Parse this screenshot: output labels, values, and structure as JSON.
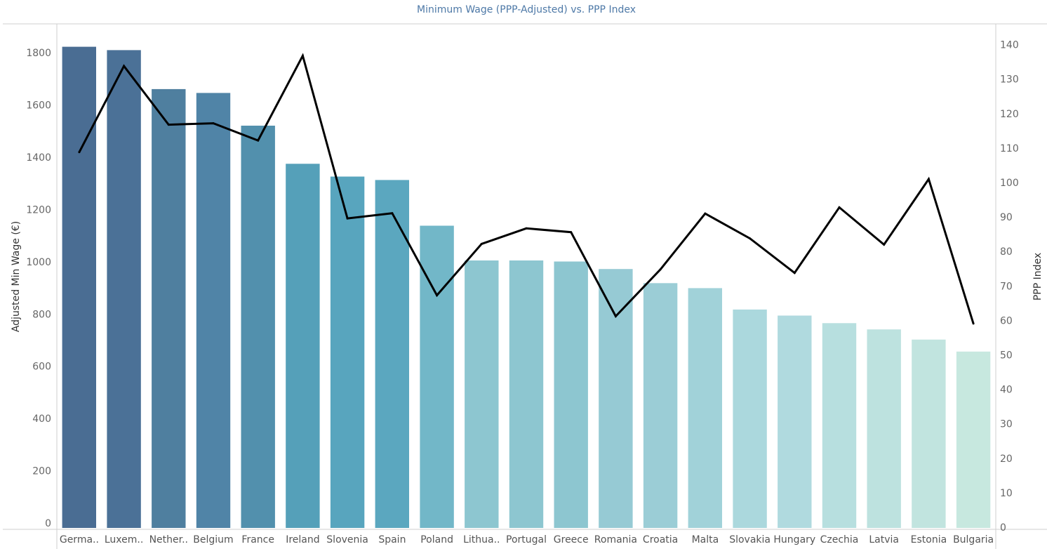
{
  "chart_data": {
    "type": "bar",
    "title": "Minimum Wage (PPP-Adjusted) vs. PPP Index",
    "ylabel": "Adjusted Min Wage (€)",
    "y2label": "PPP Index",
    "ylim": [
      0,
      1900
    ],
    "y2lim": [
      0,
      144
    ],
    "yticks": [
      0,
      200,
      400,
      600,
      800,
      1000,
      1200,
      1400,
      1600,
      1800
    ],
    "y2ticks": [
      0,
      10,
      20,
      30,
      40,
      50,
      60,
      70,
      80,
      90,
      100,
      110,
      120,
      130,
      140
    ],
    "categories": [
      "Germa..",
      "Luxem..",
      "Nether..",
      "Belgium",
      "France",
      "Ireland",
      "Slovenia",
      "Spain",
      "Poland",
      "Lithua..",
      "Portugal",
      "Greece",
      "Romania",
      "Croatia",
      "Malta",
      "Slovakia",
      "Hungary",
      "Czechia",
      "Latvia",
      "Estonia",
      "Bulgaria"
    ],
    "series": [
      {
        "name": "Adjusted Min Wage (€)",
        "kind": "bar",
        "axis": "left",
        "values": [
          1842,
          1829,
          1680,
          1665,
          1540,
          1394,
          1345,
          1332,
          1157,
          1024,
          1024,
          1020,
          991,
          937,
          918,
          836,
          813,
          784,
          760,
          721,
          675
        ]
      },
      {
        "name": "PPP Index",
        "kind": "line",
        "axis": "right",
        "values": [
          109,
          134,
          117,
          117.4,
          112.4,
          137,
          89.8,
          91.3,
          67.5,
          82.4,
          86.9,
          85.8,
          61.4,
          75,
          91.2,
          84,
          74,
          93,
          82.2,
          101.2,
          59.3
        ]
      }
    ],
    "bar_colors": [
      "#4a6d93",
      "#4b7197",
      "#4f7f9f",
      "#5084a7",
      "#5290ad",
      "#55a0b9",
      "#58a5be",
      "#5ba7bf",
      "#72b7c8",
      "#8dc6d0",
      "#8dc6d0",
      "#8dc6d0",
      "#96cad4",
      "#9bcdd6",
      "#a1d2d9",
      "#abd8dd",
      "#b0dadf",
      "#b7dfdf",
      "#bde2df",
      "#c1e4df",
      "#c7e8df"
    ],
    "line_color": "#000000",
    "grid": false,
    "legend": "none"
  }
}
